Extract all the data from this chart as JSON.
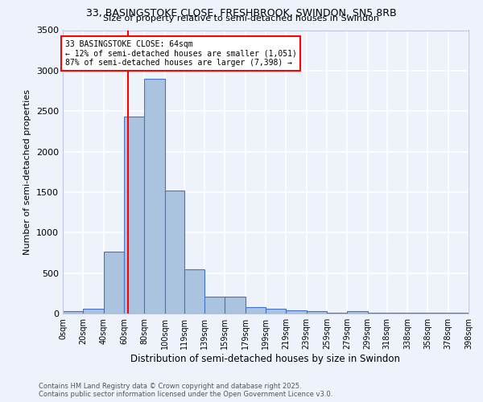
{
  "title1": "33, BASINGSTOKE CLOSE, FRESHBROOK, SWINDON, SN5 8RB",
  "title2": "Size of property relative to semi-detached houses in Swindon",
  "xlabel": "Distribution of semi-detached houses by size in Swindon",
  "ylabel": "Number of semi-detached properties",
  "bin_edges": [
    0,
    20,
    40,
    60,
    80,
    100,
    119,
    139,
    159,
    179,
    199,
    219,
    239,
    259,
    279,
    299,
    318,
    338,
    358,
    378,
    398
  ],
  "bar_heights": [
    30,
    55,
    760,
    2430,
    2900,
    1520,
    550,
    205,
    205,
    80,
    60,
    35,
    25,
    10,
    25,
    5,
    5,
    5,
    5,
    5
  ],
  "bar_color": "#aac4e0",
  "bar_edge_color": "#4472c4",
  "property_size": 64,
  "property_line_color": "red",
  "annotation_title": "33 BASINGSTOKE CLOSE: 64sqm",
  "annotation_line1": "← 12% of semi-detached houses are smaller (1,051)",
  "annotation_line2": "87% of semi-detached houses are larger (7,398) →",
  "annotation_box_color": "white",
  "annotation_box_edge": "red",
  "ylim": [
    0,
    3500
  ],
  "yticks": [
    0,
    500,
    1000,
    1500,
    2000,
    2500,
    3000,
    3500
  ],
  "tick_labels": [
    "0sqm",
    "20sqm",
    "40sqm",
    "60sqm",
    "80sqm",
    "100sqm",
    "119sqm",
    "139sqm",
    "159sqm",
    "179sqm",
    "199sqm",
    "219sqm",
    "239sqm",
    "259sqm",
    "279sqm",
    "299sqm",
    "318sqm",
    "338sqm",
    "358sqm",
    "378sqm",
    "398sqm"
  ],
  "footnote1": "Contains HM Land Registry data © Crown copyright and database right 2025.",
  "footnote2": "Contains public sector information licensed under the Open Government Licence v3.0.",
  "bg_color": "#eef2fb",
  "grid_color": "white"
}
